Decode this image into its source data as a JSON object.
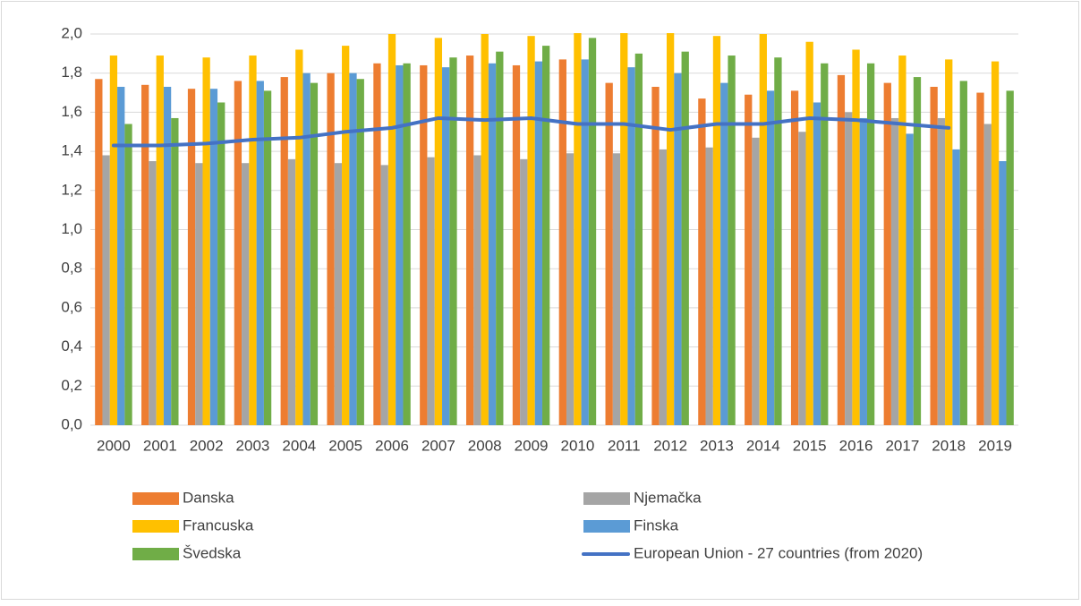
{
  "chart_data": {
    "type": "bar",
    "categories": [
      "2000",
      "2001",
      "2002",
      "2003",
      "2004",
      "2005",
      "2006",
      "2007",
      "2008",
      "2009",
      "2010",
      "2011",
      "2012",
      "2013",
      "2014",
      "2015",
      "2016",
      "2017",
      "2018",
      "2019"
    ],
    "series": [
      {
        "name": "Danska",
        "color": "#ED7D31",
        "values": [
          1.77,
          1.74,
          1.72,
          1.76,
          1.78,
          1.8,
          1.85,
          1.84,
          1.89,
          1.84,
          1.87,
          1.75,
          1.73,
          1.67,
          1.69,
          1.71,
          1.79,
          1.75,
          1.73,
          1.7
        ]
      },
      {
        "name": "Njemačka",
        "color": "#A5A5A5",
        "values": [
          1.38,
          1.35,
          1.34,
          1.34,
          1.36,
          1.34,
          1.33,
          1.37,
          1.38,
          1.36,
          1.39,
          1.39,
          1.41,
          1.42,
          1.47,
          1.5,
          1.6,
          1.57,
          1.57,
          1.54
        ]
      },
      {
        "name": "Francuska",
        "color": "#FFC000",
        "values": [
          1.89,
          1.89,
          1.88,
          1.89,
          1.92,
          1.94,
          2.0,
          1.98,
          2.0,
          1.99,
          2.03,
          2.01,
          2.01,
          1.99,
          2.0,
          1.96,
          1.92,
          1.89,
          1.87,
          1.86
        ]
      },
      {
        "name": "Finska",
        "color": "#5B9BD5",
        "values": [
          1.73,
          1.73,
          1.72,
          1.76,
          1.8,
          1.8,
          1.84,
          1.83,
          1.85,
          1.86,
          1.87,
          1.83,
          1.8,
          1.75,
          1.71,
          1.65,
          1.57,
          1.49,
          1.41,
          1.35
        ]
      },
      {
        "name": "Švedska",
        "color": "#70AD47",
        "values": [
          1.54,
          1.57,
          1.65,
          1.71,
          1.75,
          1.77,
          1.85,
          1.88,
          1.91,
          1.94,
          1.98,
          1.9,
          1.91,
          1.89,
          1.88,
          1.85,
          1.85,
          1.78,
          1.76,
          1.71
        ]
      },
      {
        "name": "European Union - 27 countries (from 2020)",
        "color": "#4472C4",
        "type": "line",
        "values": [
          1.43,
          1.43,
          1.44,
          1.46,
          1.47,
          1.5,
          1.52,
          1.57,
          1.56,
          1.57,
          1.54,
          1.54,
          1.51,
          1.54,
          1.54,
          1.57,
          1.56,
          1.54,
          1.52,
          null
        ]
      }
    ],
    "ylim": [
      0,
      2
    ],
    "yticks": [
      {
        "value": 0,
        "label": "0,0"
      },
      {
        "value": 0.2,
        "label": "0,2"
      },
      {
        "value": 0.4,
        "label": "0,4"
      },
      {
        "value": 0.6,
        "label": "0,6"
      },
      {
        "value": 0.8,
        "label": "0,8"
      },
      {
        "value": 1,
        "label": "1,0"
      },
      {
        "value": 1.2,
        "label": "1,2"
      },
      {
        "value": 1.4,
        "label": "1,4"
      },
      {
        "value": 1.6,
        "label": "1,6"
      },
      {
        "value": 1.8,
        "label": "1,8"
      },
      {
        "value": 2,
        "label": "2,0"
      }
    ],
    "grid": true,
    "legend": "bottom"
  }
}
